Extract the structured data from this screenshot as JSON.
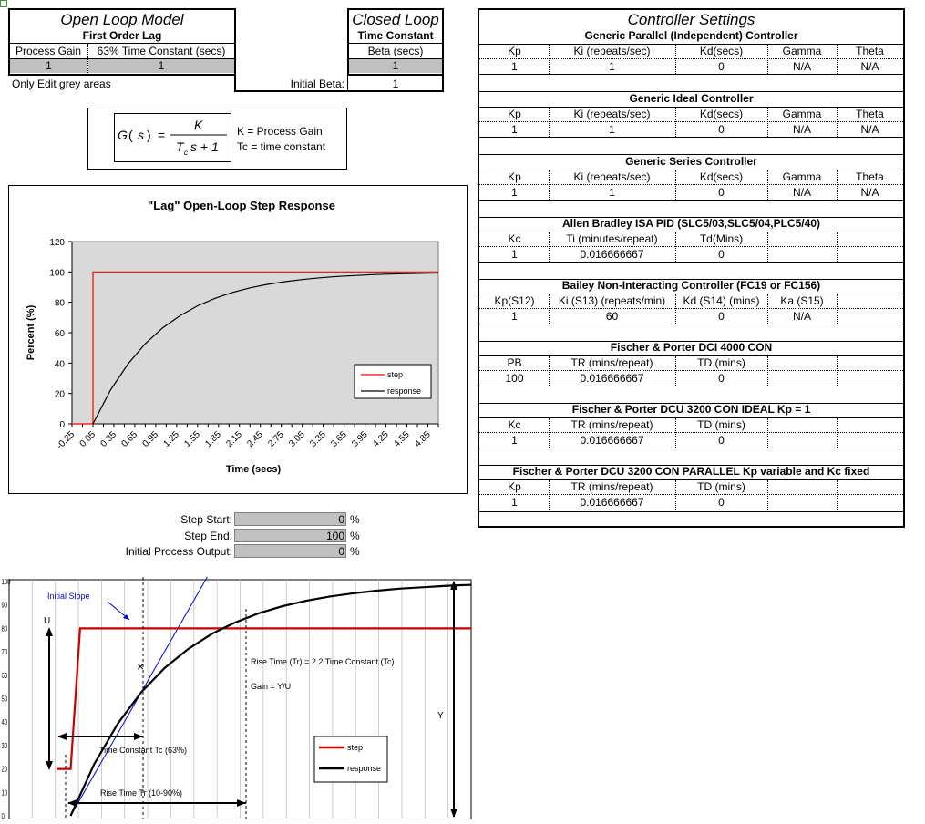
{
  "open_loop": {
    "title": "Open Loop Model",
    "subtitle": "First Order Lag",
    "col_gain": "Process Gain",
    "col_tc": "63% Time Constant (secs)",
    "gain_value": "1",
    "tc_value": "1",
    "note": "Only Edit grey areas"
  },
  "closed_loop": {
    "title": "Closed Loop",
    "subtitle": "Time Constant",
    "col_beta": "Beta (secs)",
    "beta_value": "1",
    "initial_beta_label": "Initial Beta:",
    "initial_beta_value": "1"
  },
  "formula": {
    "g": "G",
    "s": "s",
    "k": "K",
    "den_t": "T",
    "den_c": "c",
    "den_rest": "s + 1",
    "k_desc": "K = Process Gain",
    "tc_desc": "Tc = time constant"
  },
  "chart_data": [
    {
      "type": "line",
      "title": "\"Lag\" Open-Loop Step Response",
      "xlabel": "Time (secs)",
      "ylabel": "Percent (%)",
      "ylim": [
        0,
        120
      ],
      "xlim": [
        -0.25,
        5.0
      ],
      "yticks": [
        "0",
        "20",
        "40",
        "60",
        "80",
        "100",
        "120"
      ],
      "xticks": [
        "-0.25",
        "0.05",
        "0.35",
        "0.65",
        "0.95",
        "1.25",
        "1.55",
        "1.85",
        "2.15",
        "2.45",
        "2.75",
        "3.05",
        "3.35",
        "3.65",
        "3.95",
        "4.25",
        "4.55",
        "4.85"
      ],
      "grid": false,
      "legend_position": "bottom-right",
      "series": [
        {
          "name": "step",
          "color": "#ff0000",
          "x": [
            -0.25,
            0.05,
            0.05,
            5.0
          ],
          "y": [
            0,
            0,
            100,
            100
          ]
        },
        {
          "name": "response",
          "color": "#000000",
          "x": [
            0.05,
            0.3,
            0.55,
            0.8,
            1.05,
            1.3,
            1.55,
            1.8,
            2.05,
            2.3,
            2.55,
            2.8,
            3.05,
            3.3,
            3.55,
            3.8,
            4.05,
            4.3,
            4.55,
            4.8,
            5.0
          ],
          "y": [
            0,
            22.1,
            39.3,
            52.8,
            63.2,
            71.3,
            77.7,
            82.6,
            86.5,
            89.5,
            91.8,
            93.6,
            95.0,
            96.1,
            97.0,
            97.6,
            98.2,
            98.6,
            98.9,
            99.1,
            99.3
          ]
        }
      ]
    },
    {
      "type": "line",
      "ylim": [
        0,
        100
      ],
      "yticks": [
        "0",
        "10",
        "20",
        "30",
        "40",
        "50",
        "60",
        "70",
        "80",
        "90",
        "100"
      ],
      "legend_position": "bottom-center",
      "annotations": [
        "Initial Slope",
        "U",
        "Y",
        "Rise Time (Tr) = 2.2 Time Constant (Tc)",
        "Gain = Y/U",
        "Time Constant Tc (63%)",
        "Rise Time Tr (10-90%)"
      ],
      "series": [
        {
          "name": "step",
          "color": "#cc0000",
          "x": [
            0,
            0.15,
            0.25,
            4.4
          ],
          "y": [
            20,
            20,
            80,
            80
          ]
        },
        {
          "name": "response",
          "color": "#000000",
          "x": [
            0.15,
            0.4,
            0.65,
            0.9,
            1.15,
            1.4,
            1.65,
            1.9,
            2.15,
            2.4,
            2.65,
            2.9,
            3.15,
            3.4,
            3.65,
            3.9,
            4.15,
            4.4
          ],
          "y": [
            0,
            22.1,
            39.3,
            52.8,
            63.2,
            71.3,
            77.7,
            82.6,
            86.5,
            89.5,
            91.8,
            93.6,
            95.0,
            96.1,
            97.0,
            97.6,
            98.2,
            98.6
          ]
        }
      ]
    }
  ],
  "step_inputs": {
    "start_label": "Step Start:",
    "start_value": "0",
    "start_unit": "%",
    "end_label": "Step End:",
    "end_value": "100",
    "end_unit": "%",
    "initial_label": "Initial Process Output:",
    "initial_value": "0",
    "initial_unit": "%"
  },
  "controller": {
    "title": "Controller Settings",
    "sections": [
      {
        "name": "Generic Parallel (Independent) Controller",
        "headers": [
          "Kp",
          "Ki (repeats/sec)",
          "Kd(secs)",
          "Gamma",
          "Theta"
        ],
        "values": [
          "1",
          "1",
          "0",
          "N/A",
          "N/A"
        ]
      },
      {
        "name": "Generic Ideal Controller",
        "headers": [
          "Kp",
          "Ki (repeats/sec)",
          "Kd(secs)",
          "Gamma",
          "Theta"
        ],
        "values": [
          "1",
          "1",
          "0",
          "N/A",
          "N/A"
        ]
      },
      {
        "name": "Generic Series Controller",
        "headers": [
          "Kp",
          "Ki (repeats/sec)",
          "Kd(secs)",
          "Gamma",
          "Theta"
        ],
        "values": [
          "1",
          "1",
          "0",
          "N/A",
          "N/A"
        ]
      },
      {
        "name": "Allen Bradley ISA PID (SLC5/03,SLC5/04,PLC5/40)",
        "headers": [
          "Kc",
          "Ti (minutes/repeat)",
          "Td(Mins)",
          "",
          ""
        ],
        "values": [
          "1",
          "0.016666667",
          "0",
          "",
          ""
        ]
      },
      {
        "name": "Bailey Non-Interacting Controller (FC19 or FC156)",
        "headers": [
          "Kp(S12)",
          "Ki (S13) (repeats/min)",
          "Kd (S14) (mins)",
          "Ka (S15)",
          ""
        ],
        "values": [
          "1",
          "60",
          "0",
          "N/A",
          ""
        ]
      },
      {
        "name": "Fischer & Porter DCI 4000 CON",
        "headers": [
          "PB",
          "TR (mins/repeat)",
          "TD (mins)",
          "",
          ""
        ],
        "values": [
          "100",
          "0.016666667",
          "0",
          "",
          ""
        ]
      },
      {
        "name": "Fischer & Porter DCU 3200 CON IDEAL Kp = 1",
        "headers": [
          "Kc",
          "TR (mins/repeat)",
          "TD (mins)",
          "",
          ""
        ],
        "values": [
          "1",
          "0.016666667",
          "0",
          "",
          ""
        ]
      },
      {
        "name": "Fischer & Porter DCU 3200 CON PARALLEL Kp variable and Kc fixed",
        "headers": [
          "Kp",
          "TR (mins/repeat)",
          "TD (mins)",
          "",
          ""
        ],
        "values": [
          "1",
          "0.016666667",
          "0",
          "",
          ""
        ]
      }
    ]
  },
  "colors": {
    "grey_cell": "#c0c0c0",
    "plot_bg": "#d9d9d9",
    "step_red": "#ff0000",
    "dark_red": "#cc0000",
    "slope_blue": "#0000cc",
    "cell_marker": "#339933"
  }
}
